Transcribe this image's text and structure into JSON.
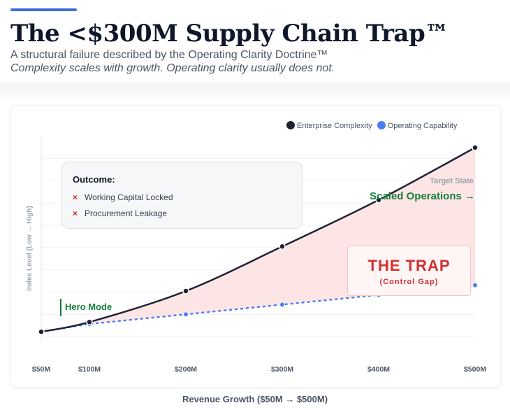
{
  "header": {
    "title": "The <$300M Supply Chain Trap™",
    "subtitle": "A structural failure described by the Operating Clarity Doctrine™",
    "tagline": "Complexity scales with growth. Operating clarity usually does not.",
    "accent_color": "#3b6fd8"
  },
  "legend": {
    "items": [
      {
        "label": "Enterprise Complexity",
        "color": "#1e2235",
        "icon": "filled-circle"
      },
      {
        "label": "Operating Capability",
        "color": "#4a7df0",
        "icon": "filled-circle"
      }
    ]
  },
  "outcome": {
    "title": "Outcome:",
    "items": [
      "Working Capital Locked",
      "Procurement Leakage"
    ],
    "marker": "×"
  },
  "annotations": {
    "target_state": "Target State",
    "scaled_operations": "Scaled Operations →",
    "trap_title": "THE TRAP",
    "trap_subtitle": "(Control Gap)",
    "hero_mode": "Hero Mode"
  },
  "chart_data": {
    "type": "line",
    "title": "",
    "xlabel": "Revenue Growth ($50M → $500M)",
    "ylabel": "Index Level (Low → High)",
    "x_values": [
      50,
      100,
      200,
      300,
      400,
      500
    ],
    "categories": [
      "$50M",
      "$100M",
      "$200M",
      "$300M",
      "$400M",
      "$500M"
    ],
    "ylim": [
      0,
      100
    ],
    "grid": true,
    "legend_position": "top-right",
    "series": [
      {
        "name": "Enterprise Complexity",
        "style": "solid",
        "color": "#1e2235",
        "values": [
          5,
          10,
          26,
          49,
          73,
          100
        ]
      },
      {
        "name": "Operating Capability",
        "style": "dotted",
        "color": "#4a7df0",
        "values": [
          5,
          9,
          14,
          19,
          24,
          29
        ]
      }
    ],
    "shaded_region": {
      "between": [
        "Enterprise Complexity",
        "Operating Capability"
      ],
      "color": "#fde2e2"
    }
  }
}
